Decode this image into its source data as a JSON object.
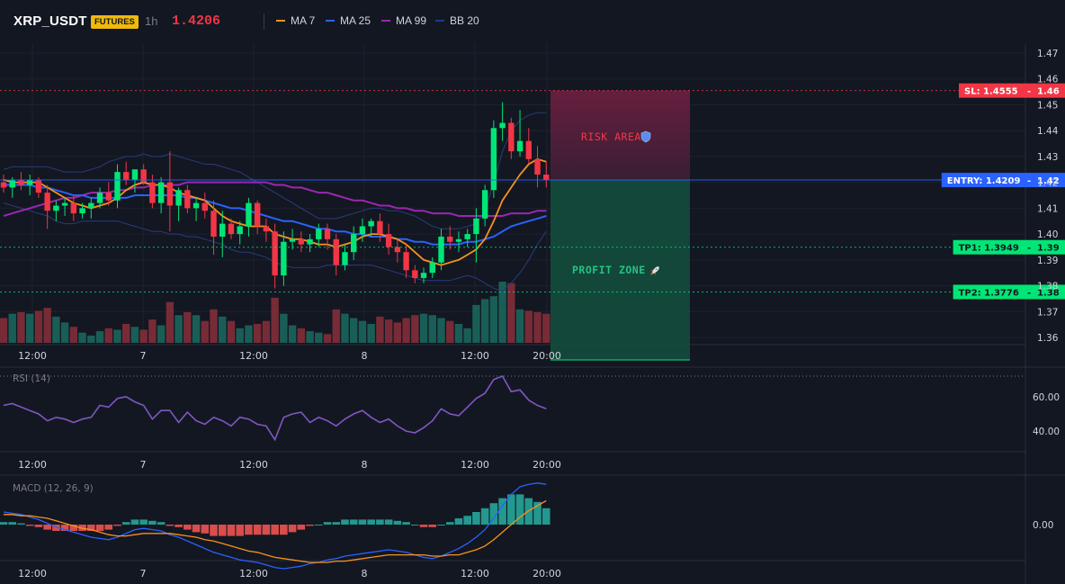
{
  "header": {
    "symbol": "XRP_USDT",
    "badge": "FUTURES",
    "timeframe": "1h",
    "last_price": "1.4206",
    "legend": [
      {
        "label": "MA 7",
        "color": "#f7931a"
      },
      {
        "label": "MA 25",
        "color": "#2962ff"
      },
      {
        "label": "MA 99",
        "color": "#9c27b0"
      },
      {
        "label": "BB 20",
        "color": "#1e3a8a"
      }
    ]
  },
  "main_axis": {
    "ticks": [
      "1.47",
      "1.46",
      "1.45",
      "1.44",
      "1.43",
      "1.42",
      "1.41",
      "1.40",
      "1.39",
      "1.38",
      "1.37",
      "1.36"
    ],
    "price_range": [
      1.357,
      1.473
    ]
  },
  "time_axis": {
    "labels": [
      "12:00",
      "7",
      "12:00",
      "8",
      "12:00",
      "20:00"
    ]
  },
  "levels": {
    "sl": {
      "label": "SL: 1.4555",
      "axis": "1.46",
      "value": 1.4555,
      "color": "#f23645"
    },
    "entry": {
      "label": "ENTRY: 1.4209",
      "axis": "1.42",
      "value": 1.4209,
      "color": "#2962ff"
    },
    "tp1": {
      "label": "TP1: 1.3949",
      "axis": "1.39",
      "value": 1.3949,
      "color": "#00e676"
    },
    "tp2": {
      "label": "TP2: 1.3776",
      "axis": "1.38",
      "value": 1.3776,
      "color": "#00e676"
    }
  },
  "zones": {
    "risk_label": "RISK AREA",
    "risk_icon": "shield-icon",
    "profit_label": "PROFIT ZONE",
    "profit_icon": "rocket-icon"
  },
  "rsi": {
    "title": "RSI (14)",
    "ticks": [
      "60.00",
      "40.00"
    ],
    "range": [
      28,
      72
    ]
  },
  "macd": {
    "title": "MACD (12, 26, 9)",
    "ticks": [
      "0.00"
    ]
  },
  "chart_data": {
    "type": "candlestick",
    "series_count": 63,
    "candles_ohlc": [
      [
        1.42,
        1.423,
        1.416,
        1.418
      ],
      [
        1.418,
        1.422,
        1.414,
        1.421
      ],
      [
        1.421,
        1.424,
        1.417,
        1.419
      ],
      [
        1.419,
        1.423,
        1.415,
        1.421
      ],
      [
        1.421,
        1.422,
        1.414,
        1.416
      ],
      [
        1.416,
        1.419,
        1.402,
        1.409
      ],
      [
        1.409,
        1.413,
        1.405,
        1.411
      ],
      [
        1.411,
        1.414,
        1.407,
        1.412
      ],
      [
        1.412,
        1.415,
        1.405,
        1.408
      ],
      [
        1.408,
        1.412,
        1.406,
        1.41
      ],
      [
        1.41,
        1.414,
        1.406,
        1.412
      ],
      [
        1.412,
        1.418,
        1.41,
        1.416
      ],
      [
        1.416,
        1.42,
        1.411,
        1.413
      ],
      [
        1.413,
        1.427,
        1.41,
        1.424
      ],
      [
        1.424,
        1.428,
        1.419,
        1.421
      ],
      [
        1.421,
        1.425,
        1.416,
        1.425
      ],
      [
        1.425,
        1.427,
        1.419,
        1.42
      ],
      [
        1.42,
        1.423,
        1.41,
        1.412
      ],
      [
        1.412,
        1.422,
        1.408,
        1.42
      ],
      [
        1.42,
        1.432,
        1.401,
        1.411
      ],
      [
        1.411,
        1.418,
        1.405,
        1.417
      ],
      [
        1.417,
        1.419,
        1.408,
        1.41
      ],
      [
        1.41,
        1.414,
        1.405,
        1.412
      ],
      [
        1.412,
        1.416,
        1.406,
        1.409
      ],
      [
        1.409,
        1.413,
        1.392,
        1.399
      ],
      [
        1.399,
        1.409,
        1.391,
        1.404
      ],
      [
        1.404,
        1.406,
        1.398,
        1.4
      ],
      [
        1.4,
        1.405,
        1.396,
        1.403
      ],
      [
        1.403,
        1.414,
        1.399,
        1.412
      ],
      [
        1.412,
        1.413,
        1.4,
        1.403
      ],
      [
        1.403,
        1.406,
        1.397,
        1.401
      ],
      [
        1.401,
        1.404,
        1.379,
        1.384
      ],
      [
        1.384,
        1.401,
        1.38,
        1.397
      ],
      [
        1.397,
        1.402,
        1.394,
        1.398
      ],
      [
        1.398,
        1.401,
        1.393,
        1.396
      ],
      [
        1.396,
        1.4,
        1.393,
        1.398
      ],
      [
        1.398,
        1.404,
        1.395,
        1.402
      ],
      [
        1.402,
        1.404,
        1.394,
        1.398
      ],
      [
        1.398,
        1.4,
        1.384,
        1.388
      ],
      [
        1.388,
        1.396,
        1.386,
        1.393
      ],
      [
        1.393,
        1.403,
        1.39,
        1.4
      ],
      [
        1.4,
        1.406,
        1.397,
        1.403
      ],
      [
        1.403,
        1.406,
        1.399,
        1.405
      ],
      [
        1.405,
        1.408,
        1.397,
        1.4
      ],
      [
        1.4,
        1.404,
        1.392,
        1.395
      ],
      [
        1.395,
        1.398,
        1.389,
        1.393
      ],
      [
        1.393,
        1.396,
        1.383,
        1.386
      ],
      [
        1.386,
        1.388,
        1.381,
        1.383
      ],
      [
        1.383,
        1.387,
        1.381,
        1.385
      ],
      [
        1.385,
        1.391,
        1.383,
        1.389
      ],
      [
        1.389,
        1.402,
        1.386,
        1.399
      ],
      [
        1.399,
        1.403,
        1.394,
        1.397
      ],
      [
        1.397,
        1.401,
        1.393,
        1.398
      ],
      [
        1.398,
        1.402,
        1.395,
        1.4
      ],
      [
        1.4,
        1.41,
        1.389,
        1.406
      ],
      [
        1.406,
        1.419,
        1.403,
        1.417
      ],
      [
        1.417,
        1.444,
        1.414,
        1.441
      ],
      [
        1.441,
        1.451,
        1.436,
        1.443
      ],
      [
        1.443,
        1.445,
        1.429,
        1.432
      ],
      [
        1.432,
        1.448,
        1.43,
        1.436
      ],
      [
        1.436,
        1.441,
        1.427,
        1.429
      ],
      [
        1.429,
        1.434,
        1.418,
        1.423
      ],
      [
        1.423,
        1.428,
        1.418,
        1.421
      ]
    ],
    "volume": [
      34,
      40,
      42,
      40,
      44,
      48,
      36,
      28,
      22,
      14,
      10,
      16,
      20,
      18,
      26,
      22,
      18,
      32,
      24,
      56,
      38,
      42,
      38,
      30,
      46,
      36,
      30,
      20,
      24,
      26,
      30,
      62,
      40,
      24,
      20,
      16,
      14,
      12,
      46,
      40,
      34,
      30,
      26,
      36,
      32,
      28,
      34,
      38,
      40,
      38,
      34,
      30,
      26,
      20,
      52,
      60,
      64,
      84,
      82,
      46,
      44,
      42,
      40
    ],
    "ma7": [
      1.421,
      1.42,
      1.42,
      1.42,
      1.42,
      1.418,
      1.416,
      1.414,
      1.412,
      1.411,
      1.41,
      1.411,
      1.412,
      1.414,
      1.417,
      1.419,
      1.42,
      1.419,
      1.419,
      1.418,
      1.416,
      1.415,
      1.414,
      1.413,
      1.41,
      1.407,
      1.405,
      1.404,
      1.403,
      1.403,
      1.403,
      1.4,
      1.399,
      1.398,
      1.398,
      1.397,
      1.396,
      1.396,
      1.395,
      1.396,
      1.397,
      1.399,
      1.4,
      1.4,
      1.399,
      1.398,
      1.396,
      1.393,
      1.39,
      1.389,
      1.388,
      1.389,
      1.39,
      1.392,
      1.394,
      1.398,
      1.405,
      1.413,
      1.418,
      1.423,
      1.427,
      1.429,
      1.428
    ],
    "ma25": [
      1.419,
      1.419,
      1.419,
      1.419,
      1.418,
      1.418,
      1.417,
      1.416,
      1.415,
      1.415,
      1.414,
      1.414,
      1.414,
      1.414,
      1.414,
      1.415,
      1.415,
      1.415,
      1.415,
      1.415,
      1.415,
      1.414,
      1.414,
      1.413,
      1.412,
      1.411,
      1.41,
      1.41,
      1.409,
      1.408,
      1.407,
      1.406,
      1.405,
      1.405,
      1.404,
      1.403,
      1.402,
      1.402,
      1.401,
      1.401,
      1.4,
      1.4,
      1.399,
      1.399,
      1.399,
      1.398,
      1.398,
      1.397,
      1.397,
      1.396,
      1.396,
      1.396,
      1.396,
      1.397,
      1.397,
      1.398,
      1.399,
      1.401,
      1.403,
      1.404,
      1.405,
      1.406,
      1.407
    ],
    "ma99": [
      1.407,
      1.408,
      1.409,
      1.41,
      1.411,
      1.412,
      1.413,
      1.414,
      1.414,
      1.415,
      1.416,
      1.416,
      1.416,
      1.417,
      1.417,
      1.418,
      1.418,
      1.419,
      1.419,
      1.419,
      1.419,
      1.42,
      1.42,
      1.42,
      1.42,
      1.42,
      1.42,
      1.42,
      1.42,
      1.42,
      1.42,
      1.419,
      1.419,
      1.418,
      1.418,
      1.417,
      1.416,
      1.416,
      1.415,
      1.414,
      1.413,
      1.413,
      1.412,
      1.411,
      1.411,
      1.41,
      1.41,
      1.409,
      1.409,
      1.408,
      1.408,
      1.408,
      1.407,
      1.407,
      1.407,
      1.407,
      1.407,
      1.407,
      1.408,
      1.408,
      1.408,
      1.409,
      1.409
    ],
    "bb_upper": [
      1.425,
      1.426,
      1.426,
      1.426,
      1.426,
      1.426,
      1.425,
      1.424,
      1.424,
      1.424,
      1.425,
      1.426,
      1.428,
      1.429,
      1.43,
      1.43,
      1.431,
      1.43,
      1.43,
      1.431,
      1.43,
      1.429,
      1.428,
      1.427,
      1.427,
      1.426,
      1.425,
      1.424,
      1.422,
      1.42,
      1.418,
      1.416,
      1.414,
      1.412,
      1.41,
      1.408,
      1.406,
      1.406,
      1.406,
      1.407,
      1.408,
      1.409,
      1.41,
      1.41,
      1.409,
      1.409,
      1.408,
      1.407,
      1.405,
      1.403,
      1.402,
      1.402,
      1.402,
      1.403,
      1.404,
      1.409,
      1.42,
      1.432,
      1.44,
      1.444,
      1.446,
      1.447,
      1.447
    ],
    "bb_lower": [
      1.412,
      1.411,
      1.41,
      1.409,
      1.408,
      1.407,
      1.405,
      1.404,
      1.404,
      1.405,
      1.405,
      1.405,
      1.405,
      1.405,
      1.404,
      1.403,
      1.402,
      1.401,
      1.401,
      1.4,
      1.4,
      1.399,
      1.399,
      1.398,
      1.397,
      1.396,
      1.394,
      1.393,
      1.393,
      1.392,
      1.391,
      1.389,
      1.388,
      1.387,
      1.387,
      1.387,
      1.387,
      1.388,
      1.388,
      1.388,
      1.388,
      1.388,
      1.388,
      1.387,
      1.386,
      1.385,
      1.384,
      1.383,
      1.382,
      1.382,
      1.382,
      1.382,
      1.383,
      1.384,
      1.383,
      1.381,
      1.379,
      1.378,
      1.381,
      1.385,
      1.39,
      1.396,
      1.401
    ],
    "rsi": [
      55,
      56,
      54,
      52,
      50,
      46,
      48,
      47,
      45,
      47,
      48,
      55,
      54,
      59,
      60,
      57,
      55,
      47,
      52,
      52,
      45,
      51,
      46,
      44,
      48,
      46,
      43,
      48,
      47,
      44,
      43,
      35,
      48,
      50,
      51,
      45,
      48,
      46,
      43,
      47,
      50,
      52,
      48,
      45,
      47,
      43,
      40,
      39,
      42,
      46,
      53,
      50,
      49,
      54,
      59,
      62,
      70,
      72,
      63,
      64,
      58,
      55,
      53
    ],
    "macd_line": [
      0.001,
      0.0009,
      0.0008,
      0.0006,
      0.0004,
      0.0001,
      -0.0002,
      -0.0004,
      -0.0006,
      -0.0008,
      -0.001,
      -0.0011,
      -0.0012,
      -0.001,
      -0.0007,
      -0.0004,
      -0.0003,
      -0.0004,
      -0.0005,
      -0.0008,
      -0.001,
      -0.0013,
      -0.0016,
      -0.0019,
      -0.0022,
      -0.0024,
      -0.0026,
      -0.0028,
      -0.0029,
      -0.003,
      -0.0032,
      -0.0034,
      -0.0035,
      -0.0034,
      -0.0033,
      -0.0031,
      -0.003,
      -0.0028,
      -0.0027,
      -0.0025,
      -0.0024,
      -0.0023,
      -0.0022,
      -0.0021,
      -0.002,
      -0.0021,
      -0.0022,
      -0.0024,
      -0.0026,
      -0.0027,
      -0.0025,
      -0.0022,
      -0.0019,
      -0.0015,
      -0.001,
      -0.0004,
      0.0005,
      0.0015,
      0.0024,
      0.003,
      0.0032,
      0.0033,
      0.0032
    ],
    "macd_signal": [
      0.0008,
      0.0008,
      0.0007,
      0.0007,
      0.0006,
      0.0005,
      0.0003,
      0.0001,
      -0.0001,
      -0.0003,
      -0.0004,
      -0.0006,
      -0.0008,
      -0.0009,
      -0.0009,
      -0.0008,
      -0.0007,
      -0.0007,
      -0.0007,
      -0.0007,
      -0.0008,
      -0.0009,
      -0.001,
      -0.0012,
      -0.0013,
      -0.0015,
      -0.0017,
      -0.0019,
      -0.0021,
      -0.0022,
      -0.0024,
      -0.0026,
      -0.0027,
      -0.0028,
      -0.0029,
      -0.003,
      -0.003,
      -0.003,
      -0.0029,
      -0.0029,
      -0.0028,
      -0.0027,
      -0.0026,
      -0.0025,
      -0.0024,
      -0.0024,
      -0.0024,
      -0.0024,
      -0.0024,
      -0.0025,
      -0.0025,
      -0.0024,
      -0.0024,
      -0.0022,
      -0.002,
      -0.0017,
      -0.0012,
      -0.0006,
      0.0,
      0.0006,
      0.0011,
      0.0015,
      0.0019
    ],
    "macd_hist": [
      0.0002,
      0.0002,
      0.0001,
      -0.0001,
      -0.0002,
      -0.0004,
      -0.0005,
      -0.0005,
      -0.0005,
      -0.0005,
      -0.0005,
      -0.0005,
      -0.0004,
      -0.0001,
      0.0002,
      0.0004,
      0.0004,
      0.0003,
      0.0002,
      -0.0001,
      -0.0002,
      -0.0004,
      -0.0006,
      -0.0007,
      -0.0009,
      -0.0009,
      -0.0009,
      -0.0009,
      -0.0008,
      -0.0008,
      -0.0008,
      -0.0008,
      -0.0008,
      -0.0006,
      -0.0004,
      -0.0001,
      0.0,
      0.0002,
      0.0002,
      0.0004,
      0.0004,
      0.0004,
      0.0004,
      0.0004,
      0.0004,
      0.0003,
      0.0002,
      0.0,
      -0.0002,
      -0.0002,
      0.0,
      0.0002,
      0.0005,
      0.0007,
      0.001,
      0.0013,
      0.0017,
      0.0021,
      0.0024,
      0.0024,
      0.0021,
      0.0018,
      0.0013
    ]
  }
}
